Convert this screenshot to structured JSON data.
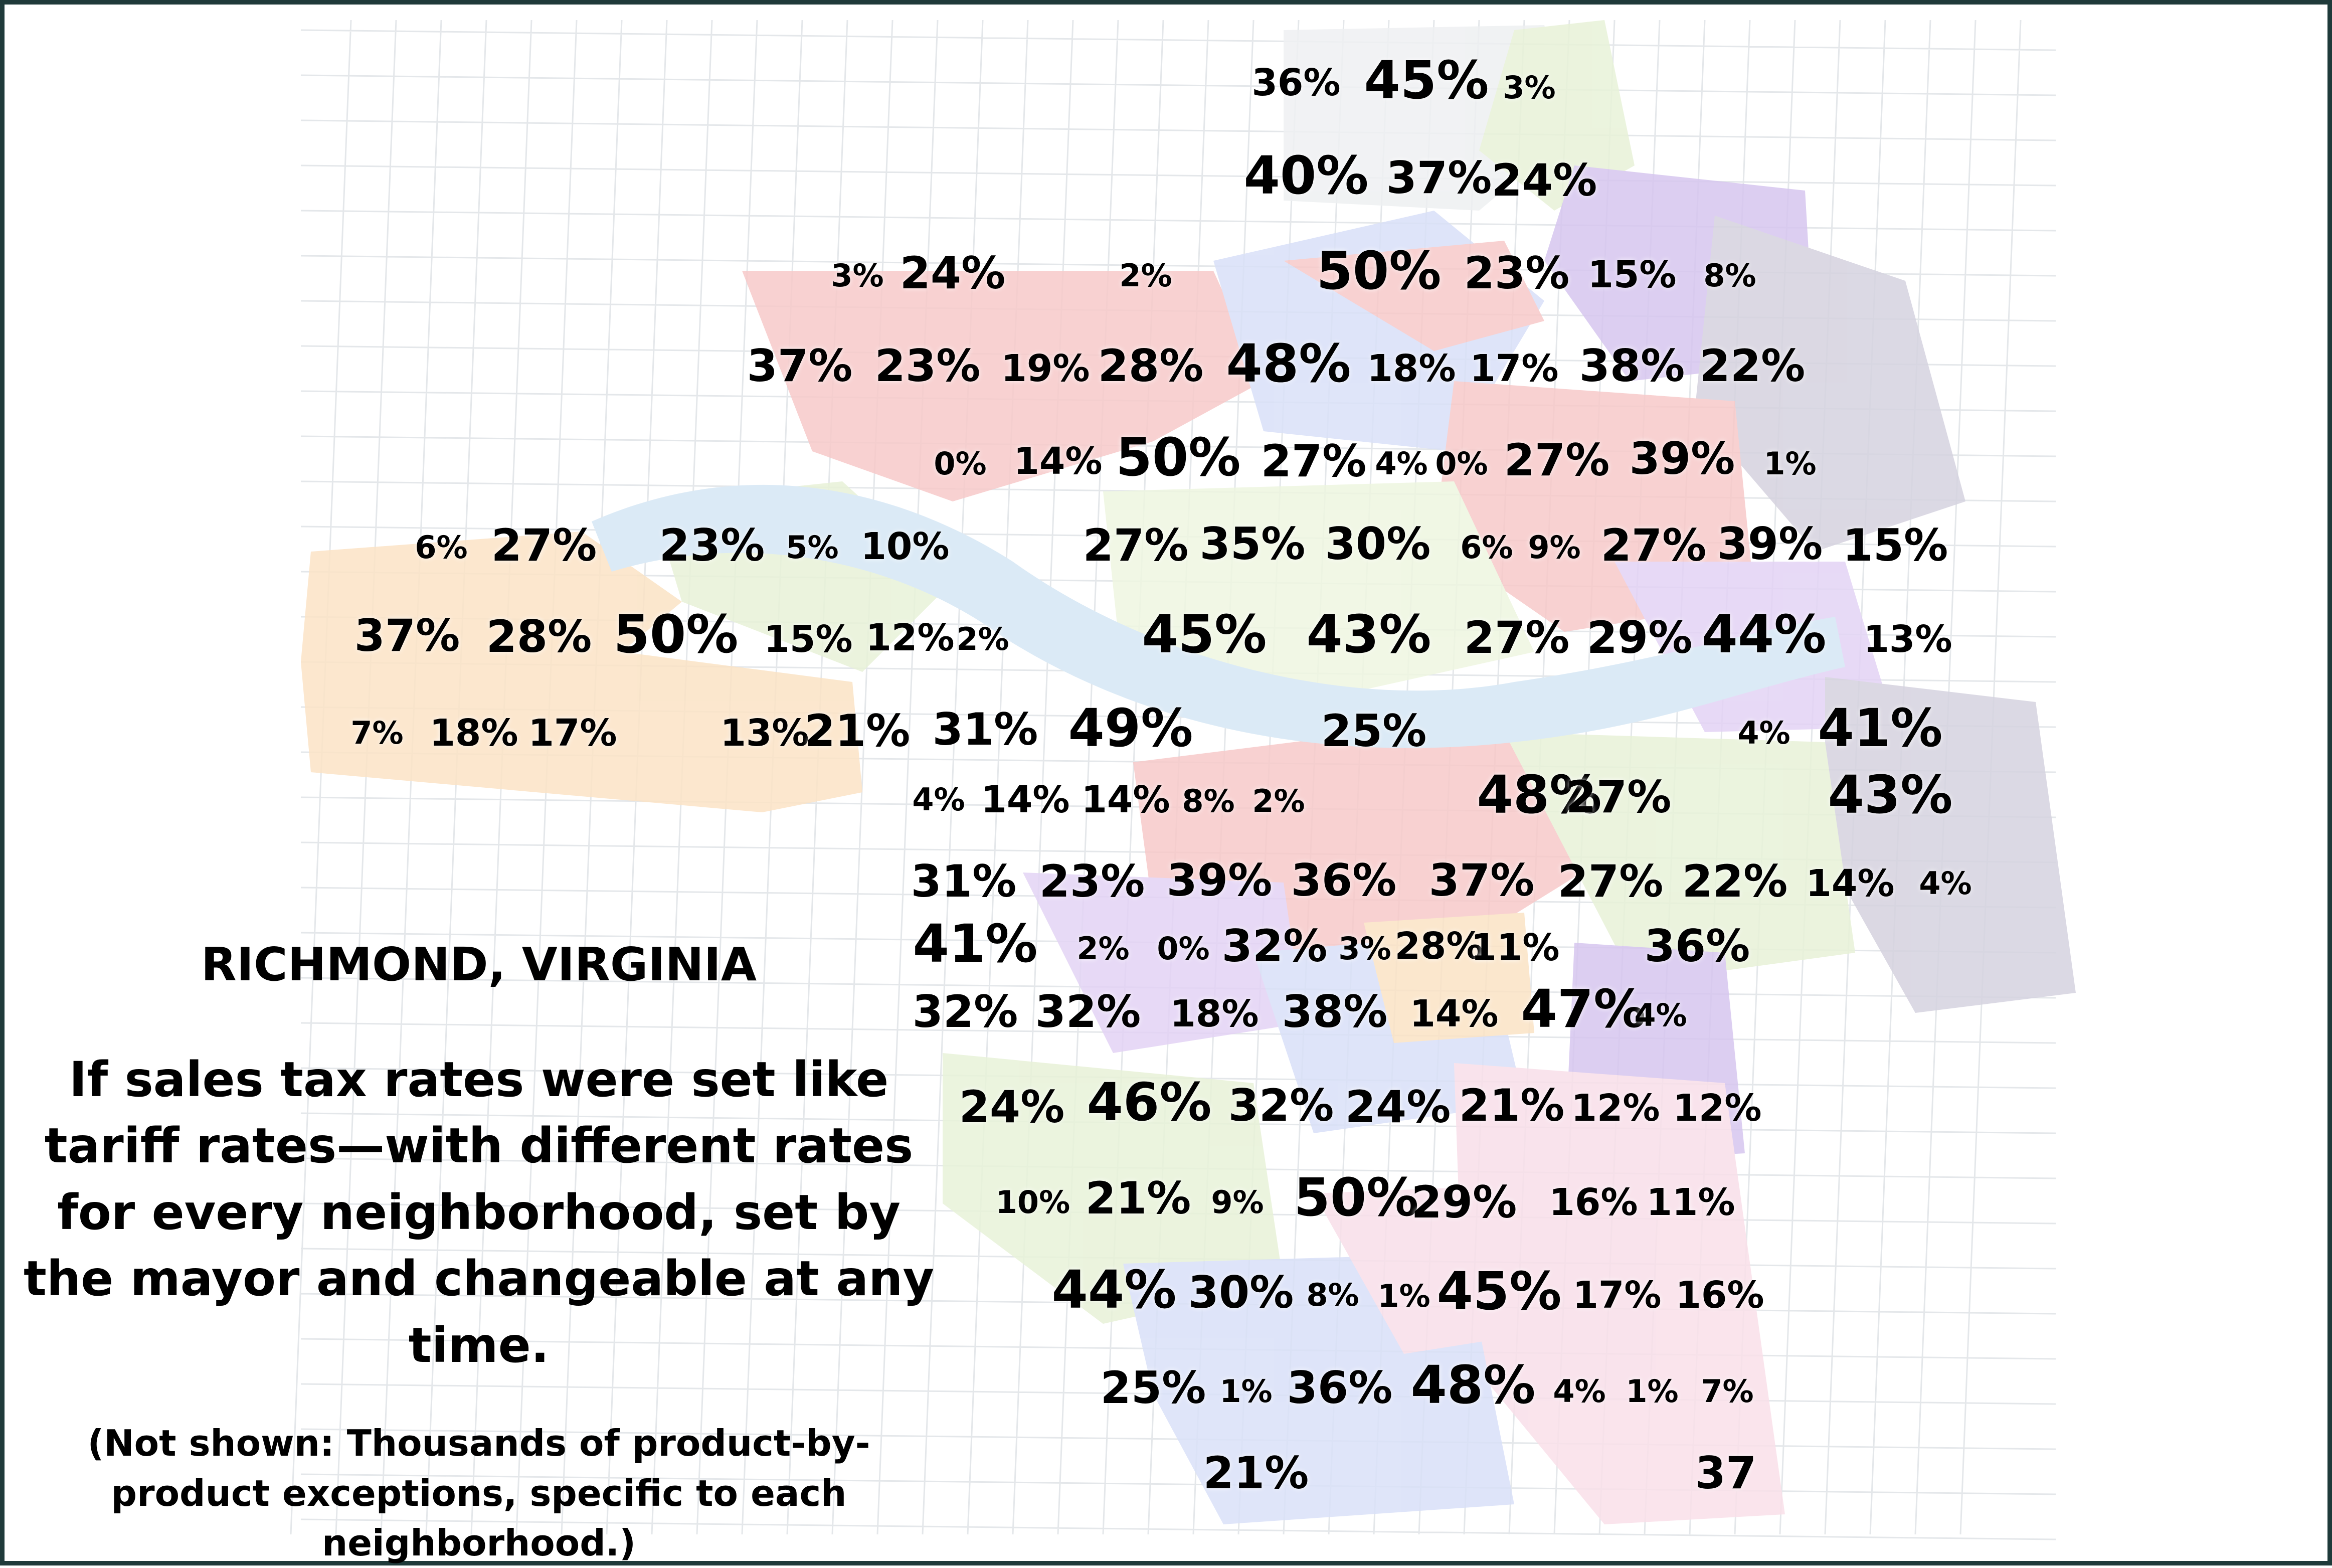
{
  "map": {
    "colors": {
      "frame": "#1f3a3a",
      "river": "#dbeaf6",
      "red": "#f7c9c9",
      "pink": "#f9dfe9",
      "purple": "#e3d3f5",
      "violet": "#d6c6ef",
      "dark_purple": "#d5d2df",
      "blue": "#d9e0f8",
      "green": "#e8f2d8",
      "light_green": "#eef6e0",
      "orange": "#fbe3c5",
      "gray": "#eef0f2"
    }
  },
  "rates": [
    {
      "text": "36%",
      "size": 2
    },
    {
      "text": "45%",
      "size": 4
    },
    {
      "text": "3%",
      "size": 1
    },
    {
      "text": "40%",
      "size": 4
    },
    {
      "text": "37%",
      "size": 3
    },
    {
      "text": "24%",
      "size": 3
    },
    {
      "text": "3%",
      "size": 1
    },
    {
      "text": "24%",
      "size": 3
    },
    {
      "text": "2%",
      "size": 1
    },
    {
      "text": "50%",
      "size": 4
    },
    {
      "text": "23%",
      "size": 3
    },
    {
      "text": "15%",
      "size": 2
    },
    {
      "text": "8%",
      "size": 1
    },
    {
      "text": "37%",
      "size": 3
    },
    {
      "text": "23%",
      "size": 3
    },
    {
      "text": "19%",
      "size": 2
    },
    {
      "text": "28%",
      "size": 3
    },
    {
      "text": "48%",
      "size": 4
    },
    {
      "text": "18%",
      "size": 2
    },
    {
      "text": "17%",
      "size": 2
    },
    {
      "text": "38%",
      "size": 3
    },
    {
      "text": "22%",
      "size": 3
    },
    {
      "text": "0%",
      "size": 1
    },
    {
      "text": "14%",
      "size": 2
    },
    {
      "text": "50%",
      "size": 4
    },
    {
      "text": "27%",
      "size": 3
    },
    {
      "text": "4%",
      "size": 1
    },
    {
      "text": "0%",
      "size": 1
    },
    {
      "text": "27%",
      "size": 3
    },
    {
      "text": "39%",
      "size": 3
    },
    {
      "text": "1%",
      "size": 1
    },
    {
      "text": "6%",
      "size": 1
    },
    {
      "text": "27%",
      "size": 3
    },
    {
      "text": "23%",
      "size": 3
    },
    {
      "text": "5%",
      "size": 1
    },
    {
      "text": "10%",
      "size": 2
    },
    {
      "text": "27%",
      "size": 3
    },
    {
      "text": "35%",
      "size": 3
    },
    {
      "text": "30%",
      "size": 3
    },
    {
      "text": "6%",
      "size": 1
    },
    {
      "text": "9%",
      "size": 1
    },
    {
      "text": "27%",
      "size": 3
    },
    {
      "text": "39%",
      "size": 3
    },
    {
      "text": "15%",
      "size": 3
    },
    {
      "text": "37%",
      "size": 3
    },
    {
      "text": "28%",
      "size": 3
    },
    {
      "text": "50%",
      "size": 4
    },
    {
      "text": "15%",
      "size": 2
    },
    {
      "text": "12%",
      "size": 2
    },
    {
      "text": "2%",
      "size": 1
    },
    {
      "text": "45%",
      "size": 4
    },
    {
      "text": "43%",
      "size": 4
    },
    {
      "text": "27%",
      "size": 3
    },
    {
      "text": "29%",
      "size": 3
    },
    {
      "text": "44%",
      "size": 4
    },
    {
      "text": "13%",
      "size": 2
    },
    {
      "text": "7%",
      "size": 1
    },
    {
      "text": "18%",
      "size": 2
    },
    {
      "text": "17%",
      "size": 2
    },
    {
      "text": "13%",
      "size": 2
    },
    {
      "text": "21%",
      "size": 3
    },
    {
      "text": "31%",
      "size": 3
    },
    {
      "text": "49%",
      "size": 4
    },
    {
      "text": "25%",
      "size": 3
    },
    {
      "text": "4%",
      "size": 1
    },
    {
      "text": "41%",
      "size": 4
    },
    {
      "text": "4%",
      "size": 1
    },
    {
      "text": "14%",
      "size": 2
    },
    {
      "text": "14%",
      "size": 2
    },
    {
      "text": "8%",
      "size": 1
    },
    {
      "text": "2%",
      "size": 1
    },
    {
      "text": "48%",
      "size": 4
    },
    {
      "text": "27%",
      "size": 3
    },
    {
      "text": "43%",
      "size": 4
    },
    {
      "text": "31%",
      "size": 3
    },
    {
      "text": "23%",
      "size": 3
    },
    {
      "text": "39%",
      "size": 3
    },
    {
      "text": "36%",
      "size": 3
    },
    {
      "text": "37%",
      "size": 3
    },
    {
      "text": "27%",
      "size": 3
    },
    {
      "text": "22%",
      "size": 3
    },
    {
      "text": "14%",
      "size": 2
    },
    {
      "text": "4%",
      "size": 1
    },
    {
      "text": "41%",
      "size": 4
    },
    {
      "text": "2%",
      "size": 1
    },
    {
      "text": "0%",
      "size": 1
    },
    {
      "text": "32%",
      "size": 3
    },
    {
      "text": "3%",
      "size": 1
    },
    {
      "text": "28%",
      "size": 2
    },
    {
      "text": "11%",
      "size": 2
    },
    {
      "text": "36%",
      "size": 3
    },
    {
      "text": "32%",
      "size": 3
    },
    {
      "text": "32%",
      "size": 3
    },
    {
      "text": "18%",
      "size": 2
    },
    {
      "text": "38%",
      "size": 3
    },
    {
      "text": "14%",
      "size": 2
    },
    {
      "text": "47%",
      "size": 4
    },
    {
      "text": "4%",
      "size": 1
    },
    {
      "text": "24%",
      "size": 3
    },
    {
      "text": "46%",
      "size": 4
    },
    {
      "text": "32%",
      "size": 3
    },
    {
      "text": "24%",
      "size": 3
    },
    {
      "text": "21%",
      "size": 3
    },
    {
      "text": "12%",
      "size": 2
    },
    {
      "text": "12%",
      "size": 2
    },
    {
      "text": "10%",
      "size": 1
    },
    {
      "text": "21%",
      "size": 3
    },
    {
      "text": "9%",
      "size": 1
    },
    {
      "text": "50%",
      "size": 4
    },
    {
      "text": "29%",
      "size": 3
    },
    {
      "text": "16%",
      "size": 2
    },
    {
      "text": "11%",
      "size": 2
    },
    {
      "text": "44%",
      "size": 4
    },
    {
      "text": "30%",
      "size": 3
    },
    {
      "text": "8%",
      "size": 1
    },
    {
      "text": "1%",
      "size": 1
    },
    {
      "text": "45%",
      "size": 4
    },
    {
      "text": "17%",
      "size": 2
    },
    {
      "text": "16%",
      "size": 2
    },
    {
      "text": "25%",
      "size": 3
    },
    {
      "text": "1%",
      "size": 1
    },
    {
      "text": "36%",
      "size": 3
    },
    {
      "text": "48%",
      "size": 4
    },
    {
      "text": "4%",
      "size": 1
    },
    {
      "text": "1%",
      "size": 1
    },
    {
      "text": "7%",
      "size": 1
    },
    {
      "text": "21%",
      "size": 3
    },
    {
      "text": "37",
      "size": 3
    }
  ],
  "caption": {
    "city": "RICHMOND, VIRGINIA",
    "description": "If sales tax rates were set like tariff rates—with different rates for every neighborhood, set by the mayor and changeable at any time.",
    "note": "(Not shown: Thousands of product-by-product exceptions, specific to each neighborhood.)"
  }
}
